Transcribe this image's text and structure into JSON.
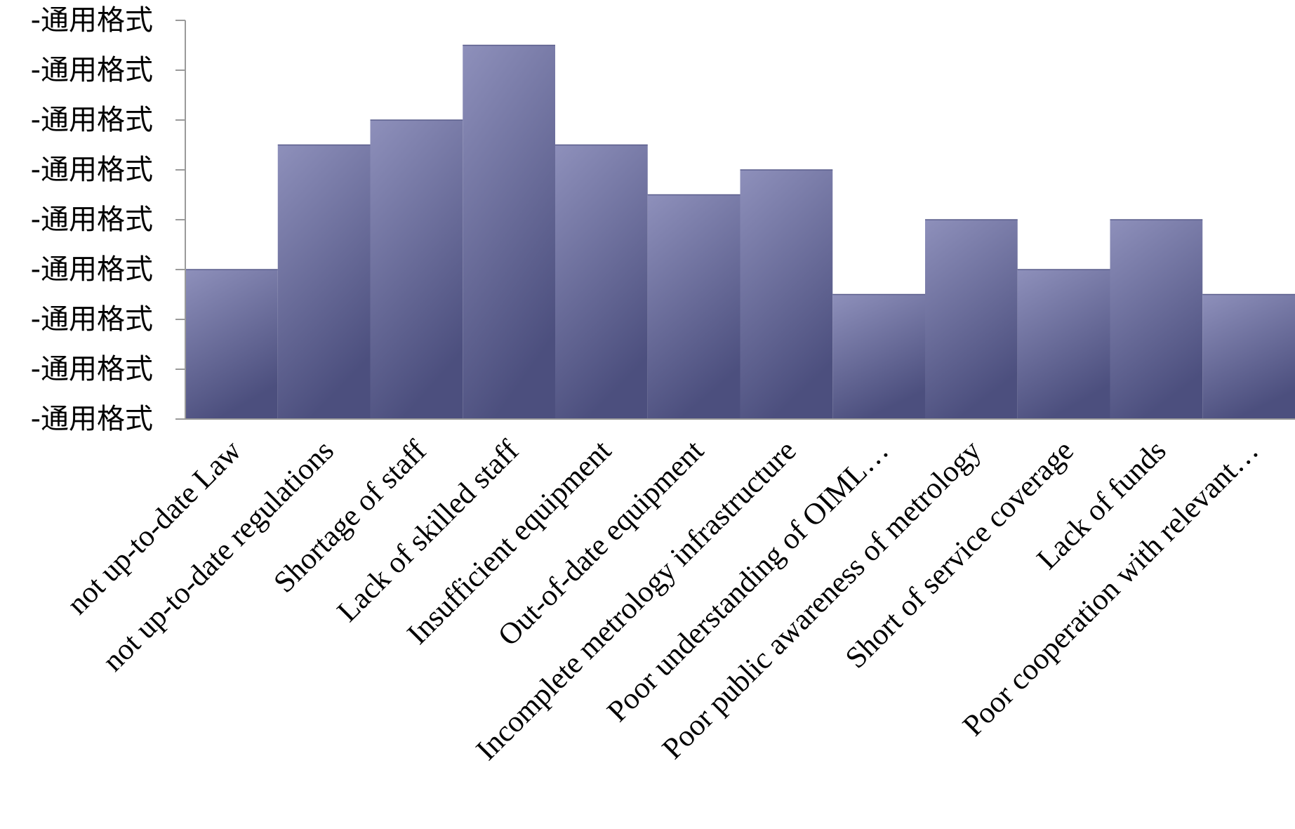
{
  "chart_data": {
    "type": "bar",
    "title": "",
    "xlabel": "",
    "ylabel": "",
    "categories": [
      "not up-to-date Law",
      "not up-to-date regulations",
      "Shortage of staff",
      "Lack of skilled staff",
      "Insufficient equipment",
      "Out-of-date equipment",
      "Incomplete metrology infrastructure",
      "Poor understanding of OIML…",
      "Poor public awareness of metrology",
      "Short of service coverage",
      "Lack of funds",
      "Poor cooperation with relevant…"
    ],
    "values": [
      3,
      5.5,
      6,
      7.5,
      5.5,
      4.5,
      5,
      2.5,
      4,
      3,
      4,
      2.5
    ],
    "ylim": [
      0,
      8
    ],
    "yticks": [
      0,
      1,
      2,
      3,
      4,
      5,
      6,
      7,
      8
    ],
    "ytick_labels": [
      "-通用格式",
      "-通用格式",
      "-通用格式",
      "-通用格式",
      "-通用格式",
      "-通用格式",
      "-通用格式",
      "-通用格式",
      "-通用格式"
    ],
    "grid": false,
    "legend": "none",
    "bar_color": "#6f72a0",
    "bar_color_light": "#8e90bb",
    "bar_color_dark": "#4c4f7e"
  }
}
